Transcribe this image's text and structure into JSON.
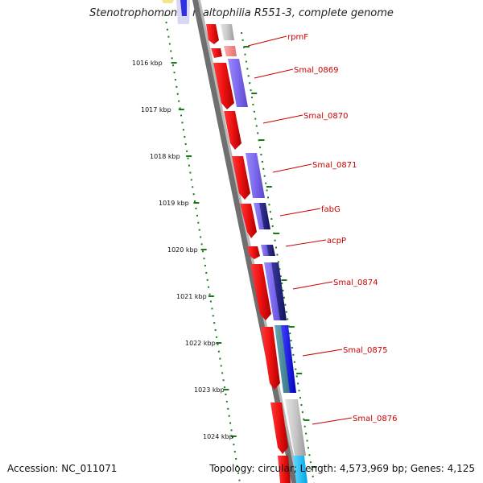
{
  "title": "Stenotrophomonas maltophilia R551-3, complete genome",
  "accession": "Accession: NC_011071",
  "summary": "Topology: circular; Length: 4,573,969 bp; Genes: 4,125",
  "colors": {
    "gene_red": "#ee1111",
    "gene_pink": "#f08080",
    "cds_purple": "#7b68ee",
    "cds_dark_blue": "#191970",
    "cds_blue": "#1010ee",
    "cds_light_blue": "#00bfff",
    "gray_feature": "#c8c8c8",
    "backbone": "#808080",
    "tick_green": "#1a7a1a",
    "label_red": "#cc0000"
  },
  "kbp_ticks": [
    "1016 kbp",
    "1017 kbp",
    "1018 kbp",
    "1019 kbp",
    "1020 kbp",
    "1021 kbp",
    "1022 kbp",
    "1023 kbp",
    "1024 kbp"
  ],
  "gene_labels": [
    "rpmF",
    "Smal_0869",
    "Smal_0870",
    "Smal_0871",
    "fabG",
    "acpP",
    "Smal_0874",
    "Smal_0875",
    "Smal_0876"
  ]
}
